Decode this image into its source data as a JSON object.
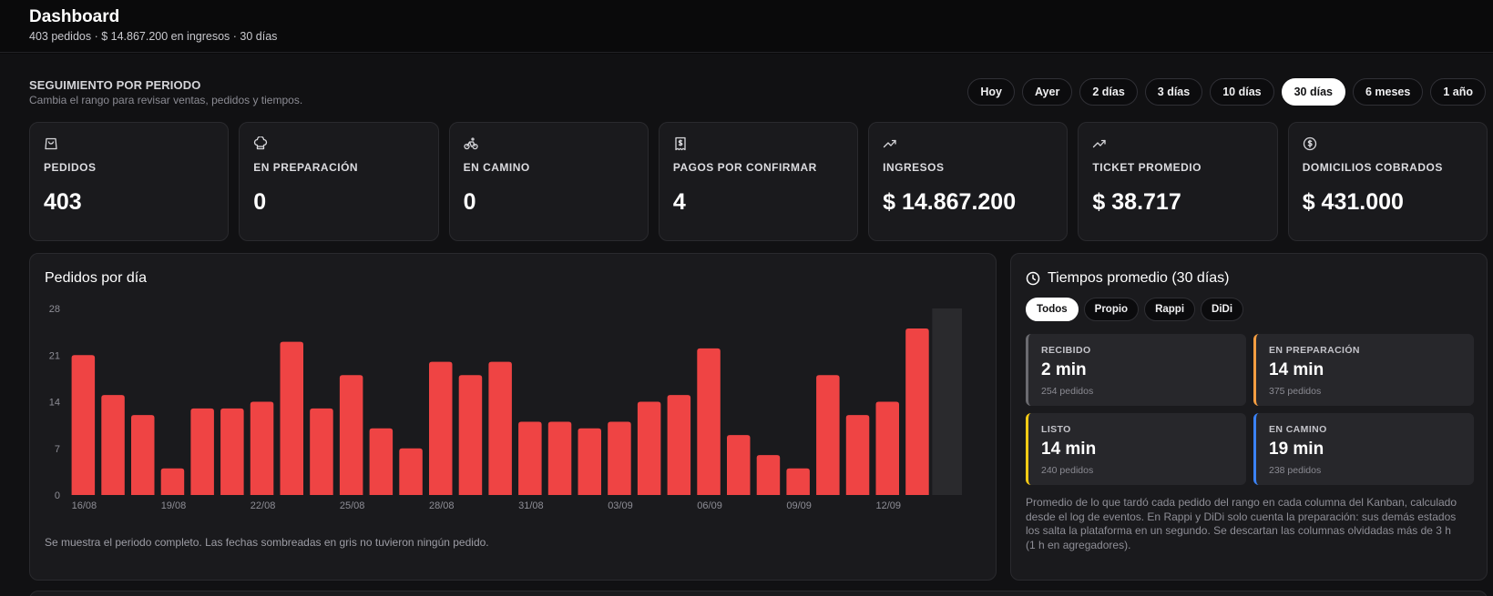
{
  "header": {
    "title": "Dashboard",
    "subtitle": "403 pedidos · $ 14.867.200 en ingresos · 30 días"
  },
  "period": {
    "title": "SEGUIMIENTO POR PERIODO",
    "subtitle": "Cambia el rango para revisar ventas, pedidos y tiempos.",
    "ranges": [
      "Hoy",
      "Ayer",
      "2 días",
      "3 días",
      "10 días",
      "30 días",
      "6 meses",
      "1 año"
    ],
    "active_range": "30 días"
  },
  "stats": [
    {
      "icon": "shopping-bag-icon",
      "label": "PEDIDOS",
      "value": "403"
    },
    {
      "icon": "chef-hat-icon",
      "label": "EN PREPARACIÓN",
      "value": "0"
    },
    {
      "icon": "bike-icon",
      "label": "EN CAMINO",
      "value": "0"
    },
    {
      "icon": "receipt-dollar-icon",
      "label": "PAGOS POR CONFIRMAR",
      "value": "4"
    },
    {
      "icon": "trending-up-icon",
      "label": "INGRESOS",
      "value": "$ 14.867.200"
    },
    {
      "icon": "trending-up-icon",
      "label": "TICKET PROMEDIO",
      "value": "$ 38.717"
    },
    {
      "icon": "dollar-circle-icon",
      "label": "DOMICILIOS COBRADOS",
      "value": "$ 431.000"
    }
  ],
  "orders_chart": {
    "title": "Pedidos por día",
    "note": "Se muestra el periodo completo. Las fechas sombreadas en gris no tuvieron ningún pedido."
  },
  "chart_data": {
    "type": "bar",
    "title": "Pedidos por día",
    "xlabel": "",
    "ylabel": "",
    "ylim": [
      0,
      28
    ],
    "yticks": [
      0,
      7,
      14,
      21,
      28
    ],
    "categories": [
      "16/08",
      "17/08",
      "18/08",
      "19/08",
      "20/08",
      "21/08",
      "22/08",
      "23/08",
      "24/08",
      "25/08",
      "26/08",
      "27/08",
      "28/08",
      "29/08",
      "30/08",
      "31/08",
      "01/09",
      "02/09",
      "03/09",
      "04/09",
      "05/09",
      "06/09",
      "07/09",
      "08/09",
      "09/09",
      "10/09",
      "11/09",
      "12/09",
      "13/09",
      "14/09"
    ],
    "values": [
      21,
      15,
      12,
      4,
      13,
      13,
      14,
      23,
      13,
      18,
      10,
      7,
      20,
      18,
      20,
      11,
      11,
      10,
      11,
      14,
      15,
      22,
      9,
      6,
      4,
      18,
      12,
      14,
      25,
      0
    ],
    "xtick_labels": [
      "16/08",
      "19/08",
      "22/08",
      "25/08",
      "28/08",
      "31/08",
      "03/09",
      "06/09",
      "09/09",
      "12/09"
    ],
    "bar_color": "#ef4444",
    "empty_day_color": "#2a2a2d",
    "grid": false
  },
  "times": {
    "title": "Tiempos promedio (30 días)",
    "tabs": [
      "Todos",
      "Propio",
      "Rappi",
      "DiDi"
    ],
    "active_tab": "Todos",
    "boxes": [
      {
        "label": "RECIBIDO",
        "value": "2 min",
        "count": "254 pedidos",
        "color": "#6b6b70"
      },
      {
        "label": "EN PREPARACIÓN",
        "value": "14 min",
        "count": "375 pedidos",
        "color": "#f59e42"
      },
      {
        "label": "LISTO",
        "value": "14 min",
        "count": "240 pedidos",
        "color": "#facc15"
      },
      {
        "label": "EN CAMINO",
        "value": "19 min",
        "count": "238 pedidos",
        "color": "#3b82f6"
      }
    ],
    "note": "Promedio de lo que tardó cada pedido del rango en cada columna del Kanban, calculado desde el log de eventos. En Rappi y DiDi solo cuenta la preparación: sus demás estados los salta la plataforma en un segundo. Se descartan las columnas olvidadas más de 3 h (1 h en agregadores)."
  }
}
